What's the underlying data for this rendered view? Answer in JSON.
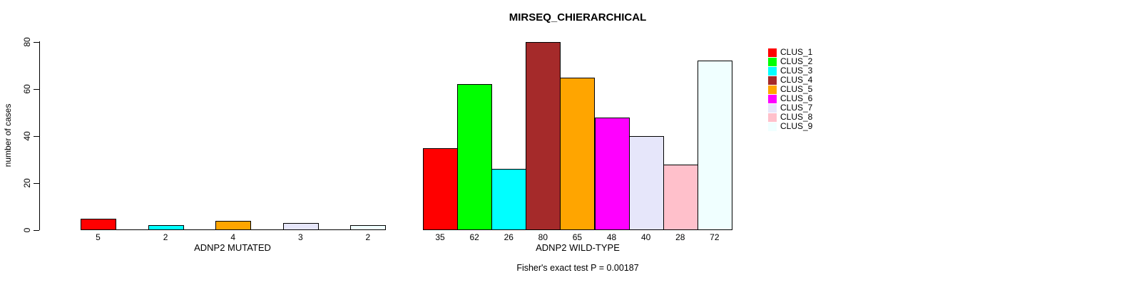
{
  "chart_data": {
    "type": "bar",
    "title": "MIRSEQ_CHIERARCHICAL",
    "ylabel": "number of cases",
    "xlabel": "",
    "ylim": [
      0,
      80
    ],
    "yticks": [
      0,
      20,
      40,
      60,
      80
    ],
    "grid": false,
    "background": "#FFFFFF",
    "bar_border_color": "#000000",
    "legend_position": "right",
    "footnote": "Fisher's exact test P = 0.00187",
    "groups": [
      {
        "label": "ADNP2 MUTATED",
        "spacing": "gapped",
        "bars": [
          {
            "cluster": "CLUS_1",
            "value": 5,
            "color": "#FF0000"
          },
          {
            "cluster": "CLUS_3",
            "value": 2,
            "color": "#00FFFF"
          },
          {
            "cluster": "CLUS_5",
            "value": 4,
            "color": "#FFA500"
          },
          {
            "cluster": "CLUS_7",
            "value": 3,
            "color": "#E6E6FA"
          },
          {
            "cluster": "CLUS_9",
            "value": 2,
            "color": "#F0FFFF"
          }
        ]
      },
      {
        "label": "ADNP2 WILD-TYPE",
        "spacing": "adjacent",
        "bars": [
          {
            "cluster": "CLUS_1",
            "value": 35,
            "color": "#FF0000"
          },
          {
            "cluster": "CLUS_2",
            "value": 62,
            "color": "#00FF00"
          },
          {
            "cluster": "CLUS_3",
            "value": 26,
            "color": "#00FFFF"
          },
          {
            "cluster": "CLUS_4",
            "value": 80,
            "color": "#A52A2A"
          },
          {
            "cluster": "CLUS_5",
            "value": 65,
            "color": "#FFA500"
          },
          {
            "cluster": "CLUS_6",
            "value": 48,
            "color": "#FF00FF"
          },
          {
            "cluster": "CLUS_7",
            "value": 40,
            "color": "#E6E6FA"
          },
          {
            "cluster": "CLUS_8",
            "value": 28,
            "color": "#FFC0CB"
          },
          {
            "cluster": "CLUS_9",
            "value": 72,
            "color": "#F0FFFF"
          }
        ]
      }
    ]
  },
  "legend": {
    "items": [
      {
        "label": "CLUS_1",
        "color": "#FF0000"
      },
      {
        "label": "CLUS_2",
        "color": "#00FF00"
      },
      {
        "label": "CLUS_3",
        "color": "#00FFFF"
      },
      {
        "label": "CLUS_4",
        "color": "#A52A2A"
      },
      {
        "label": "CLUS_5",
        "color": "#FFA500"
      },
      {
        "label": "CLUS_6",
        "color": "#FF00FF"
      },
      {
        "label": "CLUS_7",
        "color": "#E6E6FA"
      },
      {
        "label": "CLUS_8",
        "color": "#FFC0CB"
      },
      {
        "label": "CLUS_9",
        "color": "#F0FFFF"
      }
    ]
  }
}
